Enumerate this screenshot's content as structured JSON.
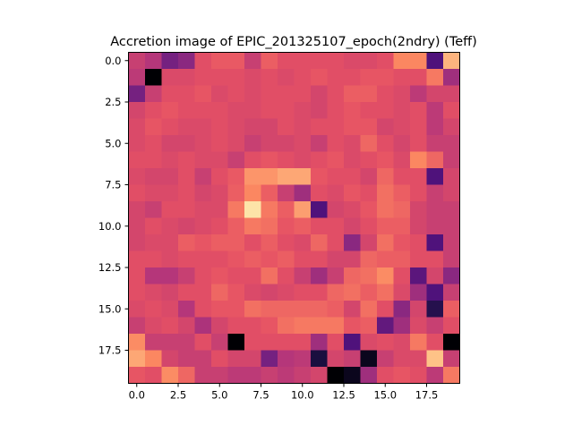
{
  "chart_data": {
    "type": "heatmap",
    "title": "Accretion image of EPIC_201325107_epoch(2ndry) (Teff)",
    "xlabel": "",
    "ylabel": "",
    "colormap": "magma",
    "vmin": 0,
    "vmax": 1,
    "xlim": [
      -0.5,
      19.5
    ],
    "ylim": [
      19.5,
      -0.5
    ],
    "xticks": [
      0,
      2.5,
      5,
      7.5,
      10,
      12.5,
      15,
      17.5
    ],
    "xtick_labels": [
      "0.0",
      "2.5",
      "5.0",
      "7.5",
      "10.0",
      "12.5",
      "15.0",
      "17.5"
    ],
    "yticks": [
      0,
      2.5,
      5,
      7.5,
      10,
      12.5,
      15,
      17.5
    ],
    "ytick_labels": [
      "0.0",
      "2.5",
      "5.0",
      "7.5",
      "10.0",
      "12.5",
      "15.0",
      "17.5"
    ],
    "grid": false,
    "values": [
      [
        0.55,
        0.5,
        0.35,
        0.4,
        0.62,
        0.65,
        0.65,
        0.55,
        0.66,
        0.62,
        0.62,
        0.62,
        0.62,
        0.6,
        0.6,
        0.62,
        0.75,
        0.75,
        0.25,
        0.85
      ],
      [
        0.52,
        0.0,
        0.6,
        0.6,
        0.62,
        0.62,
        0.62,
        0.6,
        0.62,
        0.6,
        0.62,
        0.64,
        0.62,
        0.62,
        0.64,
        0.64,
        0.62,
        0.62,
        0.72,
        0.45
      ],
      [
        0.35,
        0.55,
        0.62,
        0.62,
        0.64,
        0.6,
        0.62,
        0.6,
        0.62,
        0.62,
        0.62,
        0.58,
        0.62,
        0.66,
        0.66,
        0.62,
        0.6,
        0.52,
        0.58,
        0.58
      ],
      [
        0.58,
        0.62,
        0.64,
        0.62,
        0.62,
        0.62,
        0.6,
        0.6,
        0.62,
        0.62,
        0.6,
        0.58,
        0.62,
        0.64,
        0.62,
        0.62,
        0.6,
        0.62,
        0.52,
        0.62
      ],
      [
        0.6,
        0.64,
        0.62,
        0.6,
        0.6,
        0.62,
        0.6,
        0.58,
        0.58,
        0.62,
        0.6,
        0.62,
        0.62,
        0.64,
        0.64,
        0.58,
        0.6,
        0.62,
        0.52,
        0.58
      ],
      [
        0.6,
        0.62,
        0.58,
        0.58,
        0.6,
        0.62,
        0.6,
        0.55,
        0.58,
        0.58,
        0.6,
        0.55,
        0.62,
        0.6,
        0.68,
        0.62,
        0.58,
        0.62,
        0.55,
        0.55
      ],
      [
        0.62,
        0.62,
        0.6,
        0.62,
        0.6,
        0.6,
        0.55,
        0.62,
        0.64,
        0.62,
        0.6,
        0.62,
        0.64,
        0.6,
        0.62,
        0.64,
        0.6,
        0.75,
        0.68,
        0.55
      ],
      [
        0.6,
        0.58,
        0.58,
        0.62,
        0.55,
        0.62,
        0.65,
        0.78,
        0.78,
        0.82,
        0.82,
        0.64,
        0.62,
        0.62,
        0.58,
        0.68,
        0.62,
        0.62,
        0.25,
        0.58
      ],
      [
        0.62,
        0.6,
        0.6,
        0.62,
        0.58,
        0.6,
        0.66,
        0.75,
        0.66,
        0.55,
        0.45,
        0.62,
        0.6,
        0.64,
        0.62,
        0.7,
        0.66,
        0.62,
        0.55,
        0.58
      ],
      [
        0.58,
        0.55,
        0.62,
        0.62,
        0.6,
        0.6,
        0.72,
        0.95,
        0.72,
        0.66,
        0.8,
        0.25,
        0.58,
        0.6,
        0.64,
        0.7,
        0.68,
        0.58,
        0.55,
        0.55
      ],
      [
        0.58,
        0.62,
        0.6,
        0.58,
        0.6,
        0.62,
        0.66,
        0.72,
        0.7,
        0.64,
        0.66,
        0.62,
        0.62,
        0.58,
        0.62,
        0.66,
        0.66,
        0.58,
        0.55,
        0.55
      ],
      [
        0.58,
        0.6,
        0.6,
        0.66,
        0.64,
        0.66,
        0.66,
        0.62,
        0.66,
        0.62,
        0.6,
        0.68,
        0.62,
        0.4,
        0.58,
        0.7,
        0.64,
        0.62,
        0.25,
        0.55
      ],
      [
        0.62,
        0.62,
        0.6,
        0.62,
        0.62,
        0.62,
        0.64,
        0.66,
        0.64,
        0.66,
        0.62,
        0.62,
        0.58,
        0.58,
        0.68,
        0.66,
        0.66,
        0.62,
        0.62,
        0.55
      ],
      [
        0.62,
        0.5,
        0.5,
        0.55,
        0.62,
        0.64,
        0.62,
        0.62,
        0.7,
        0.62,
        0.55,
        0.45,
        0.55,
        0.68,
        0.7,
        0.76,
        0.62,
        0.28,
        0.58,
        0.4
      ],
      [
        0.62,
        0.6,
        0.58,
        0.62,
        0.62,
        0.68,
        0.64,
        0.6,
        0.58,
        0.6,
        0.62,
        0.62,
        0.68,
        0.7,
        0.66,
        0.7,
        0.6,
        0.45,
        0.25,
        0.55
      ],
      [
        0.6,
        0.62,
        0.6,
        0.5,
        0.62,
        0.64,
        0.64,
        0.7,
        0.68,
        0.68,
        0.68,
        0.68,
        0.66,
        0.58,
        0.7,
        0.62,
        0.4,
        0.58,
        0.15,
        0.66
      ],
      [
        0.55,
        0.6,
        0.62,
        0.58,
        0.48,
        0.58,
        0.62,
        0.62,
        0.64,
        0.7,
        0.72,
        0.72,
        0.72,
        0.64,
        0.66,
        0.3,
        0.45,
        0.6,
        0.55,
        0.62
      ],
      [
        0.76,
        0.55,
        0.55,
        0.55,
        0.62,
        0.55,
        0.0,
        0.62,
        0.62,
        0.62,
        0.62,
        0.45,
        0.62,
        0.25,
        0.6,
        0.62,
        0.6,
        0.72,
        0.62,
        0.0
      ],
      [
        0.82,
        0.75,
        0.58,
        0.55,
        0.55,
        0.62,
        0.58,
        0.58,
        0.35,
        0.5,
        0.52,
        0.12,
        0.58,
        0.55,
        0.05,
        0.55,
        0.6,
        0.6,
        0.88,
        0.55
      ],
      [
        0.64,
        0.62,
        0.76,
        0.68,
        0.55,
        0.55,
        0.52,
        0.52,
        0.55,
        0.52,
        0.55,
        0.58,
        0.0,
        0.05,
        0.45,
        0.62,
        0.64,
        0.62,
        0.52,
        0.72
      ]
    ]
  }
}
